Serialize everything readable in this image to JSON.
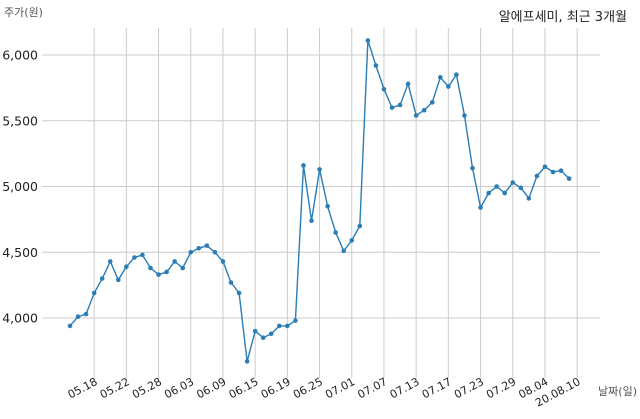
{
  "chart_data": {
    "type": "line",
    "title": "알에프세미, 최근 3개월",
    "ylabel": "주가(원)",
    "xlabel": "날짜(일)",
    "ylim": [
      3500,
      6250
    ],
    "yticks": [
      4000,
      4500,
      5000,
      5500,
      6000
    ],
    "ytick_labels": [
      "4,000",
      "4,500",
      "5,000",
      "5,500",
      "6,000"
    ],
    "xtick_labels": [
      "05.18",
      "05.22",
      "05.28",
      "06.03",
      "06.09",
      "06.15",
      "06.19",
      "06.25",
      "07.01",
      "07.07",
      "07.13",
      "07.17",
      "07.23",
      "07.29",
      "08.04",
      "20.08.10"
    ],
    "xtick_positions": [
      3,
      7,
      11,
      15,
      19,
      23,
      27,
      31,
      35,
      39,
      43,
      47,
      51,
      55,
      59,
      63
    ],
    "grid": true,
    "line_color": "#2a7db5",
    "series": [
      {
        "values": [
          3940,
          4010,
          4030,
          4190,
          4300,
          4430,
          4290,
          4390,
          4460,
          4480,
          4380,
          4330,
          4350,
          4430,
          4380,
          4500,
          4530,
          4550,
          4500,
          4430,
          4270,
          4190,
          3670,
          3900,
          3850,
          3880,
          3940,
          3940,
          3980,
          5160,
          4740,
          5130,
          4850,
          4650,
          4510,
          4590,
          4700,
          6110,
          5920,
          5740,
          5600,
          5620,
          5780,
          5540,
          5580,
          5640,
          5830,
          5760,
          5850,
          5540,
          5140,
          4840,
          4950,
          5000,
          4950,
          5030,
          4990,
          4910,
          5080,
          5150,
          5110,
          5120,
          5060
        ]
      }
    ]
  }
}
